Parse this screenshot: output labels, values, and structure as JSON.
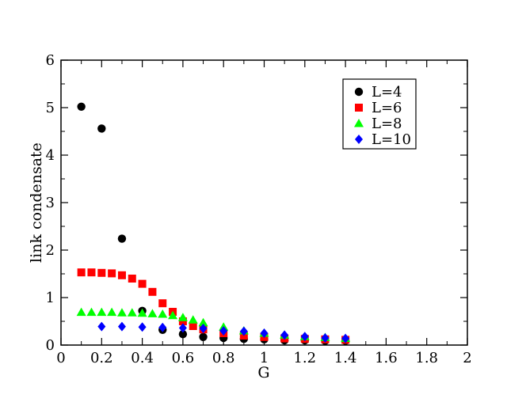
{
  "chart_data": {
    "type": "scatter",
    "title": "",
    "xlabel": "G",
    "ylabel": "link condensate",
    "xlim": [
      0,
      2
    ],
    "ylim": [
      0,
      6
    ],
    "xticks": [
      0,
      0.2,
      0.4,
      0.6,
      0.8,
      1,
      1.2,
      1.4,
      1.6,
      1.8,
      2
    ],
    "xtick_labels": [
      "0",
      "0.2",
      "0.4",
      "0.6",
      "0.8",
      "1",
      "1.2",
      "1.4",
      "1.6",
      "1.8",
      "2"
    ],
    "yticks": [
      0,
      1,
      2,
      3,
      4,
      5,
      6
    ],
    "ytick_labels": [
      "0",
      "1",
      "2",
      "3",
      "4",
      "5",
      "6"
    ],
    "grid": false,
    "legend_position": "top-right",
    "series": [
      {
        "name": "L=4",
        "color": "#000000",
        "marker": "circle",
        "x": [
          0.1,
          0.2,
          0.3,
          0.4,
          0.5,
          0.6,
          0.7,
          0.8,
          0.9,
          1.0,
          1.1,
          1.2,
          1.3,
          1.4
        ],
        "y": [
          5.02,
          4.56,
          2.24,
          0.72,
          0.32,
          0.23,
          0.17,
          0.15,
          0.13,
          0.12,
          0.1,
          0.1,
          0.09,
          0.09
        ]
      },
      {
        "name": "L=6",
        "color": "#ff0000",
        "marker": "square",
        "x": [
          0.1,
          0.15,
          0.2,
          0.25,
          0.3,
          0.35,
          0.4,
          0.45,
          0.5,
          0.55,
          0.6,
          0.65,
          0.7,
          0.8,
          0.9,
          1.0,
          1.1,
          1.2,
          1.3,
          1.4
        ],
        "y": [
          1.53,
          1.53,
          1.52,
          1.51,
          1.47,
          1.4,
          1.29,
          1.12,
          0.88,
          0.7,
          0.5,
          0.4,
          0.33,
          0.25,
          0.2,
          0.17,
          0.14,
          0.13,
          0.12,
          0.11
        ]
      },
      {
        "name": "L=8",
        "color": "#00ff00",
        "marker": "triangle",
        "x": [
          0.1,
          0.15,
          0.2,
          0.25,
          0.3,
          0.35,
          0.4,
          0.45,
          0.5,
          0.55,
          0.6,
          0.65,
          0.7,
          0.8,
          0.9,
          1.0,
          1.1,
          1.2,
          1.3,
          1.4
        ],
        "y": [
          0.69,
          0.69,
          0.69,
          0.69,
          0.68,
          0.68,
          0.67,
          0.66,
          0.65,
          0.62,
          0.58,
          0.53,
          0.47,
          0.38,
          0.3,
          0.25,
          0.21,
          0.18,
          0.16,
          0.14
        ]
      },
      {
        "name": "L=10",
        "color": "#0000ff",
        "marker": "diamond",
        "x": [
          0.2,
          0.3,
          0.4,
          0.5,
          0.6,
          0.7,
          0.8,
          0.9,
          1.0,
          1.1,
          1.2,
          1.3,
          1.4
        ],
        "y": [
          0.39,
          0.39,
          0.38,
          0.37,
          0.36,
          0.35,
          0.3,
          0.29,
          0.25,
          0.21,
          0.18,
          0.15,
          0.14
        ]
      }
    ]
  }
}
